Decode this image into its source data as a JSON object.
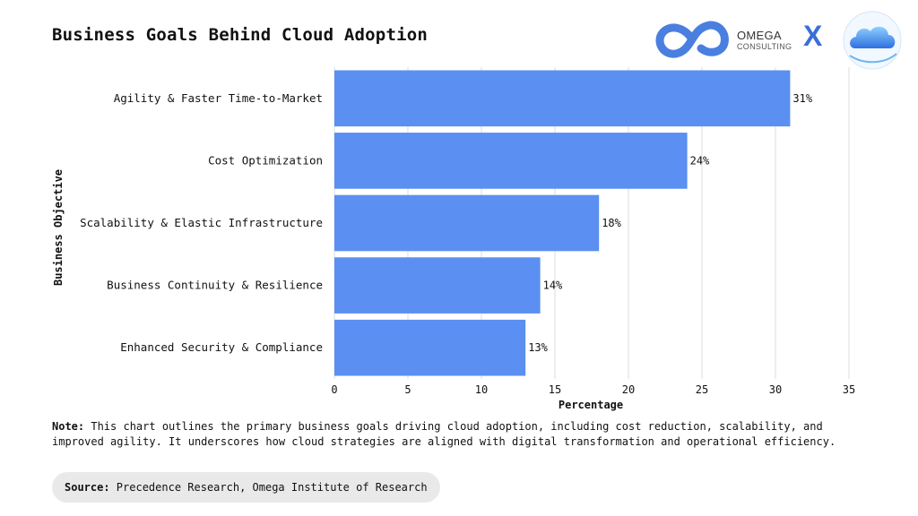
{
  "header": {
    "title": "Business Goals Behind Cloud Adoption",
    "logo_name": "OMEGA",
    "logo_sub": "CONSULTING",
    "times": "X"
  },
  "chart_data": {
    "type": "bar",
    "orientation": "horizontal",
    "title": "Business Goals Behind Cloud Adoption",
    "xlabel": "Percentage",
    "ylabel": "Business Objective",
    "categories": [
      "Agility & Faster Time-to-Market",
      "Cost Optimization",
      "Scalability & Elastic Infrastructure",
      "Business Continuity & Resilience",
      "Enhanced Security & Compliance"
    ],
    "values": [
      31,
      24,
      18,
      14,
      13
    ],
    "value_labels": [
      "31%",
      "24%",
      "18%",
      "14%",
      "13%"
    ],
    "xlim": [
      0,
      35
    ],
    "xticks": [
      0,
      5,
      10,
      15,
      20,
      25,
      30,
      35
    ],
    "grid": true,
    "bar_color": "#5b8ff2"
  },
  "footer": {
    "note_label": "Note:",
    "note_text": " This chart outlines the primary business goals driving cloud adoption, including cost reduction, scalability, and improved agility. It underscores how cloud strategies are aligned with digital transformation and operational efficiency.",
    "source_label": "Source:",
    "source_text": " Precedence Research, Omega Institute of Research"
  }
}
